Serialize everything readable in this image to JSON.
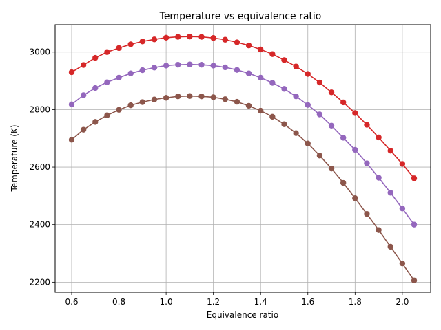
{
  "chart_data": {
    "type": "line",
    "title": "Temperature vs equivalence ratio",
    "xlabel": "Equivalence ratio",
    "ylabel": "Temperature (K)",
    "xlim": [
      0.53,
      2.12
    ],
    "ylim": [
      2165,
      3095
    ],
    "xticks": [
      0.6,
      0.8,
      1.0,
      1.2,
      1.4,
      1.6,
      1.8,
      2.0
    ],
    "xtick_labels": [
      "0.6",
      "0.8",
      "1.0",
      "1.2",
      "1.4",
      "1.6",
      "1.8",
      "2.0"
    ],
    "yticks": [
      2200,
      2400,
      2600,
      2800,
      3000
    ],
    "ytick_labels": [
      "2200",
      "2400",
      "2600",
      "2800",
      "3000"
    ],
    "grid": true,
    "marker": "circle",
    "x": [
      0.6,
      0.65,
      0.7,
      0.75,
      0.8,
      0.85,
      0.9,
      0.95,
      1.0,
      1.05,
      1.1,
      1.15,
      1.2,
      1.25,
      1.3,
      1.35,
      1.4,
      1.45,
      1.5,
      1.55,
      1.6,
      1.65,
      1.7,
      1.75,
      1.8,
      1.85,
      1.9,
      1.95,
      2.0,
      2.05
    ],
    "series": [
      {
        "color": "#d62728",
        "values": [
          2930,
          2955,
          2980,
          3000,
          3014,
          3027,
          3037,
          3044,
          3050,
          3053,
          3054,
          3053,
          3049,
          3043,
          3034,
          3023,
          3009,
          2993,
          2972,
          2950,
          2924,
          2894,
          2860,
          2825,
          2788,
          2747,
          2703,
          2657,
          2611,
          2561
        ]
      },
      {
        "color": "#9467bd",
        "values": [
          2818,
          2850,
          2875,
          2895,
          2911,
          2926,
          2937,
          2946,
          2953,
          2956,
          2957,
          2956,
          2953,
          2947,
          2938,
          2926,
          2911,
          2893,
          2872,
          2846,
          2816,
          2783,
          2744,
          2702,
          2660,
          2613,
          2563,
          2511,
          2456,
          2400
        ]
      },
      {
        "color": "#8c564b",
        "values": [
          2695,
          2730,
          2757,
          2780,
          2799,
          2815,
          2826,
          2835,
          2841,
          2846,
          2847,
          2846,
          2843,
          2836,
          2827,
          2813,
          2796,
          2775,
          2749,
          2718,
          2682,
          2640,
          2595,
          2545,
          2492,
          2437,
          2381,
          2323,
          2265,
          2206
        ]
      }
    ]
  }
}
